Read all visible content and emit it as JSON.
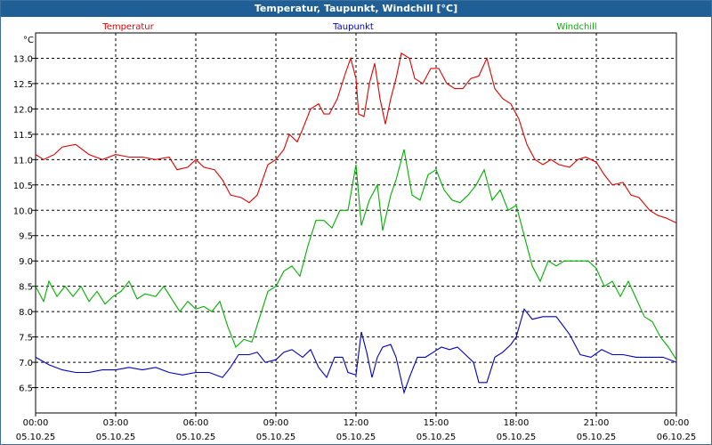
{
  "window": {
    "title": "Temperatur, Taupunkt, Windchill [°C]"
  },
  "chart_data": {
    "type": "line",
    "title": "Temperatur, Taupunkt, Windchill [°C]",
    "ylabel": "°C",
    "xlabel": "",
    "ylim": [
      6.0,
      13.5
    ],
    "xlim": [
      0,
      24
    ],
    "y_ticks": [
      6.5,
      7.0,
      7.5,
      8.0,
      8.5,
      9.0,
      9.5,
      10.0,
      10.5,
      11.0,
      11.5,
      12.0,
      12.5,
      13.0
    ],
    "x_ticks": [
      {
        "value": 0,
        "time": "00:00",
        "date": "05.10.25"
      },
      {
        "value": 3,
        "time": "03:00",
        "date": "05.10.25"
      },
      {
        "value": 6,
        "time": "06:00",
        "date": "05.10.25"
      },
      {
        "value": 9,
        "time": "09:00",
        "date": "05.10.25"
      },
      {
        "value": 12,
        "time": "12:00",
        "date": "05.10.25"
      },
      {
        "value": 15,
        "time": "15:00",
        "date": "05.10.25"
      },
      {
        "value": 18,
        "time": "18:00",
        "date": "05.10.25"
      },
      {
        "value": 21,
        "time": "21:00",
        "date": "05.10.25"
      },
      {
        "value": 24,
        "time": "00:00",
        "date": "06.10.25"
      }
    ],
    "grid": true,
    "series": [
      {
        "name": "Temperatur",
        "color": "#e00000",
        "points": [
          [
            0,
            11.1
          ],
          [
            0.3,
            11.0
          ],
          [
            0.7,
            11.1
          ],
          [
            1.0,
            11.25
          ],
          [
            1.5,
            11.3
          ],
          [
            2.0,
            11.1
          ],
          [
            2.5,
            11.0
          ],
          [
            3.0,
            11.1
          ],
          [
            3.5,
            11.05
          ],
          [
            4.0,
            11.05
          ],
          [
            4.5,
            11.0
          ],
          [
            5.0,
            11.05
          ],
          [
            5.3,
            10.8
          ],
          [
            5.7,
            10.85
          ],
          [
            6.0,
            11.0
          ],
          [
            6.3,
            10.85
          ],
          [
            6.7,
            10.8
          ],
          [
            7.0,
            10.6
          ],
          [
            7.3,
            10.3
          ],
          [
            7.7,
            10.25
          ],
          [
            8.0,
            10.15
          ],
          [
            8.3,
            10.3
          ],
          [
            8.7,
            10.9
          ],
          [
            9.0,
            11.0
          ],
          [
            9.3,
            11.2
          ],
          [
            9.5,
            11.5
          ],
          [
            9.8,
            11.35
          ],
          [
            10.0,
            11.6
          ],
          [
            10.3,
            12.0
          ],
          [
            10.6,
            12.1
          ],
          [
            10.8,
            11.9
          ],
          [
            11.0,
            11.9
          ],
          [
            11.3,
            12.2
          ],
          [
            11.6,
            12.7
          ],
          [
            11.8,
            13.0
          ],
          [
            12.0,
            12.6
          ],
          [
            12.1,
            11.9
          ],
          [
            12.3,
            11.85
          ],
          [
            12.5,
            12.5
          ],
          [
            12.7,
            12.9
          ],
          [
            12.9,
            12.2
          ],
          [
            13.1,
            11.7
          ],
          [
            13.3,
            12.2
          ],
          [
            13.5,
            12.6
          ],
          [
            13.7,
            13.1
          ],
          [
            14.0,
            13.0
          ],
          [
            14.2,
            12.6
          ],
          [
            14.5,
            12.5
          ],
          [
            14.8,
            12.8
          ],
          [
            15.1,
            12.8
          ],
          [
            15.4,
            12.5
          ],
          [
            15.7,
            12.4
          ],
          [
            16.0,
            12.4
          ],
          [
            16.3,
            12.6
          ],
          [
            16.6,
            12.65
          ],
          [
            16.9,
            13.0
          ],
          [
            17.2,
            12.4
          ],
          [
            17.5,
            12.2
          ],
          [
            17.8,
            12.1
          ],
          [
            18.1,
            11.8
          ],
          [
            18.4,
            11.3
          ],
          [
            18.7,
            11.0
          ],
          [
            19.0,
            10.9
          ],
          [
            19.3,
            11.0
          ],
          [
            19.6,
            10.9
          ],
          [
            20.0,
            10.85
          ],
          [
            20.3,
            11.0
          ],
          [
            20.6,
            11.05
          ],
          [
            21.0,
            10.95
          ],
          [
            21.3,
            10.7
          ],
          [
            21.6,
            10.5
          ],
          [
            22.0,
            10.55
          ],
          [
            22.3,
            10.3
          ],
          [
            22.6,
            10.25
          ],
          [
            23.0,
            10.0
          ],
          [
            23.3,
            9.9
          ],
          [
            23.6,
            9.85
          ],
          [
            24.0,
            9.75
          ]
        ]
      },
      {
        "name": "Taupunkt",
        "color": "#0000c0",
        "points": [
          [
            0,
            7.1
          ],
          [
            0.5,
            6.95
          ],
          [
            1.0,
            6.85
          ],
          [
            1.5,
            6.8
          ],
          [
            2.0,
            6.8
          ],
          [
            2.5,
            6.85
          ],
          [
            3.0,
            6.85
          ],
          [
            3.5,
            6.9
          ],
          [
            4.0,
            6.85
          ],
          [
            4.5,
            6.9
          ],
          [
            5.0,
            6.8
          ],
          [
            5.5,
            6.75
          ],
          [
            6.0,
            6.8
          ],
          [
            6.5,
            6.8
          ],
          [
            7.0,
            6.7
          ],
          [
            7.3,
            6.9
          ],
          [
            7.6,
            7.15
          ],
          [
            8.0,
            7.15
          ],
          [
            8.3,
            7.2
          ],
          [
            8.6,
            7.0
          ],
          [
            9.0,
            7.05
          ],
          [
            9.3,
            7.2
          ],
          [
            9.6,
            7.25
          ],
          [
            10.0,
            7.1
          ],
          [
            10.3,
            7.25
          ],
          [
            10.6,
            6.9
          ],
          [
            10.9,
            6.7
          ],
          [
            11.2,
            7.1
          ],
          [
            11.5,
            7.1
          ],
          [
            11.7,
            6.8
          ],
          [
            12.0,
            6.75
          ],
          [
            12.2,
            7.6
          ],
          [
            12.4,
            7.2
          ],
          [
            12.6,
            6.7
          ],
          [
            12.8,
            7.1
          ],
          [
            13.0,
            7.3
          ],
          [
            13.3,
            7.35
          ],
          [
            13.5,
            7.1
          ],
          [
            13.8,
            6.4
          ],
          [
            14.0,
            6.7
          ],
          [
            14.3,
            7.1
          ],
          [
            14.6,
            7.1
          ],
          [
            14.9,
            7.2
          ],
          [
            15.2,
            7.3
          ],
          [
            15.5,
            7.25
          ],
          [
            15.8,
            7.3
          ],
          [
            16.1,
            7.15
          ],
          [
            16.4,
            7.0
          ],
          [
            16.6,
            6.6
          ],
          [
            16.9,
            6.6
          ],
          [
            17.2,
            7.1
          ],
          [
            17.5,
            7.2
          ],
          [
            17.8,
            7.35
          ],
          [
            18.0,
            7.5
          ],
          [
            18.3,
            8.05
          ],
          [
            18.6,
            7.85
          ],
          [
            19.0,
            7.9
          ],
          [
            19.5,
            7.9
          ],
          [
            20.0,
            7.55
          ],
          [
            20.4,
            7.15
          ],
          [
            20.8,
            7.1
          ],
          [
            21.2,
            7.25
          ],
          [
            21.6,
            7.15
          ],
          [
            22.0,
            7.15
          ],
          [
            22.5,
            7.1
          ],
          [
            23.0,
            7.1
          ],
          [
            23.5,
            7.1
          ],
          [
            24.0,
            7.0
          ]
        ]
      },
      {
        "name": "Windchill",
        "color": "#00b000",
        "points": [
          [
            0,
            8.5
          ],
          [
            0.3,
            8.2
          ],
          [
            0.5,
            8.6
          ],
          [
            0.8,
            8.3
          ],
          [
            1.1,
            8.5
          ],
          [
            1.4,
            8.3
          ],
          [
            1.7,
            8.5
          ],
          [
            2.0,
            8.2
          ],
          [
            2.3,
            8.4
          ],
          [
            2.6,
            8.15
          ],
          [
            2.9,
            8.3
          ],
          [
            3.2,
            8.4
          ],
          [
            3.5,
            8.6
          ],
          [
            3.8,
            8.25
          ],
          [
            4.1,
            8.35
          ],
          [
            4.5,
            8.3
          ],
          [
            4.8,
            8.5
          ],
          [
            5.1,
            8.25
          ],
          [
            5.4,
            8.0
          ],
          [
            5.7,
            8.2
          ],
          [
            6.0,
            8.05
          ],
          [
            6.3,
            8.1
          ],
          [
            6.6,
            8.0
          ],
          [
            6.9,
            8.2
          ],
          [
            7.2,
            7.7
          ],
          [
            7.5,
            7.3
          ],
          [
            7.8,
            7.45
          ],
          [
            8.1,
            7.4
          ],
          [
            8.4,
            7.9
          ],
          [
            8.7,
            8.4
          ],
          [
            9.0,
            8.5
          ],
          [
            9.3,
            8.8
          ],
          [
            9.6,
            8.9
          ],
          [
            9.9,
            8.7
          ],
          [
            10.2,
            9.3
          ],
          [
            10.5,
            9.8
          ],
          [
            10.8,
            9.8
          ],
          [
            11.1,
            9.65
          ],
          [
            11.4,
            10.0
          ],
          [
            11.7,
            10.0
          ],
          [
            12.0,
            10.9
          ],
          [
            12.2,
            9.7
          ],
          [
            12.5,
            10.2
          ],
          [
            12.8,
            10.5
          ],
          [
            13.0,
            9.6
          ],
          [
            13.3,
            10.3
          ],
          [
            13.5,
            10.6
          ],
          [
            13.8,
            11.2
          ],
          [
            14.1,
            10.3
          ],
          [
            14.4,
            10.2
          ],
          [
            14.7,
            10.7
          ],
          [
            15.0,
            10.8
          ],
          [
            15.3,
            10.4
          ],
          [
            15.6,
            10.2
          ],
          [
            15.9,
            10.15
          ],
          [
            16.2,
            10.3
          ],
          [
            16.5,
            10.5
          ],
          [
            16.8,
            10.8
          ],
          [
            17.1,
            10.2
          ],
          [
            17.4,
            10.4
          ],
          [
            17.7,
            10.0
          ],
          [
            18.0,
            10.1
          ],
          [
            18.3,
            9.5
          ],
          [
            18.6,
            8.9
          ],
          [
            18.9,
            8.6
          ],
          [
            19.2,
            9.0
          ],
          [
            19.5,
            8.9
          ],
          [
            19.8,
            9.0
          ],
          [
            20.1,
            9.0
          ],
          [
            20.4,
            9.0
          ],
          [
            20.7,
            9.0
          ],
          [
            21.0,
            8.85
          ],
          [
            21.3,
            8.5
          ],
          [
            21.6,
            8.6
          ],
          [
            21.9,
            8.3
          ],
          [
            22.2,
            8.6
          ],
          [
            22.5,
            8.25
          ],
          [
            22.8,
            7.9
          ],
          [
            23.1,
            7.8
          ],
          [
            23.4,
            7.5
          ],
          [
            23.7,
            7.3
          ],
          [
            24.0,
            7.05
          ]
        ]
      }
    ]
  }
}
